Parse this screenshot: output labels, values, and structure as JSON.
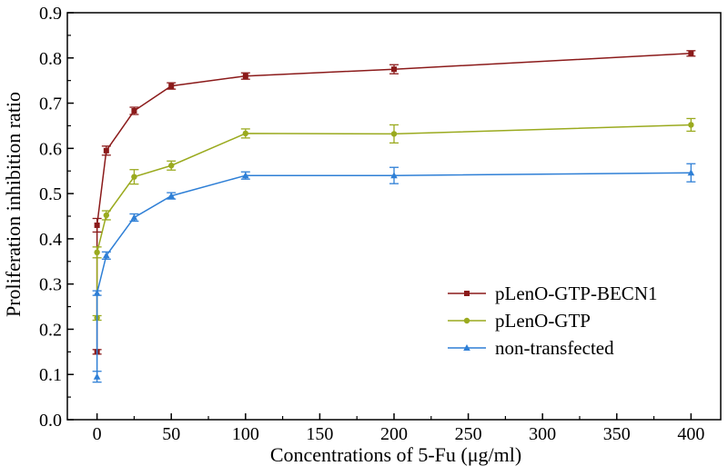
{
  "chart_data": {
    "type": "line",
    "title": "",
    "xlabel": "Concentrations of 5-Fu (μg/ml)",
    "ylabel": "Proliferation inhibition ratio",
    "xlim": [
      -20,
      420
    ],
    "ylim": [
      0.0,
      0.9
    ],
    "xticks": [
      0,
      50,
      100,
      150,
      200,
      250,
      300,
      350,
      400
    ],
    "xtick_labels": [
      "0",
      "50",
      "100",
      "150",
      "200",
      "250",
      "300",
      "350",
      "400"
    ],
    "yticks": [
      0.0,
      0.1,
      0.2,
      0.3,
      0.4,
      0.5,
      0.6,
      0.7,
      0.8,
      0.9
    ],
    "ytick_labels": [
      "0.0",
      "0.1",
      "0.2",
      "0.3",
      "0.4",
      "0.5",
      "0.6",
      "0.7",
      "0.8",
      "0.9"
    ],
    "legend_position": "lower-right",
    "series": [
      {
        "name": "pLenO-GTP-BECN1",
        "color": "#8b1a1a",
        "marker": "square",
        "x": [
          0,
          0,
          6.25,
          25,
          50,
          100,
          200,
          400
        ],
        "y": [
          0.15,
          0.43,
          0.595,
          0.683,
          0.738,
          0.76,
          0.775,
          0.81
        ],
        "err": [
          0.005,
          0.015,
          0.01,
          0.008,
          0.007,
          0.007,
          0.01,
          0.006
        ]
      },
      {
        "name": "pLenO-GTP",
        "color": "#9aaa1e",
        "marker": "circle",
        "x": [
          0,
          0,
          6.25,
          25,
          50,
          100,
          200,
          400
        ],
        "y": [
          0.225,
          0.37,
          0.452,
          0.537,
          0.562,
          0.633,
          0.632,
          0.652
        ],
        "err": [
          0.005,
          0.012,
          0.01,
          0.016,
          0.01,
          0.01,
          0.02,
          0.014
        ]
      },
      {
        "name": "non-transfected",
        "color": "#2e7fd6",
        "marker": "triangle",
        "x": [
          0,
          0,
          6.25,
          25,
          50,
          100,
          200,
          400
        ],
        "y": [
          0.095,
          0.28,
          0.363,
          0.447,
          0.495,
          0.54,
          0.54,
          0.546
        ],
        "err": [
          0.012,
          0.005,
          0.008,
          0.008,
          0.007,
          0.008,
          0.018,
          0.02
        ]
      }
    ]
  }
}
